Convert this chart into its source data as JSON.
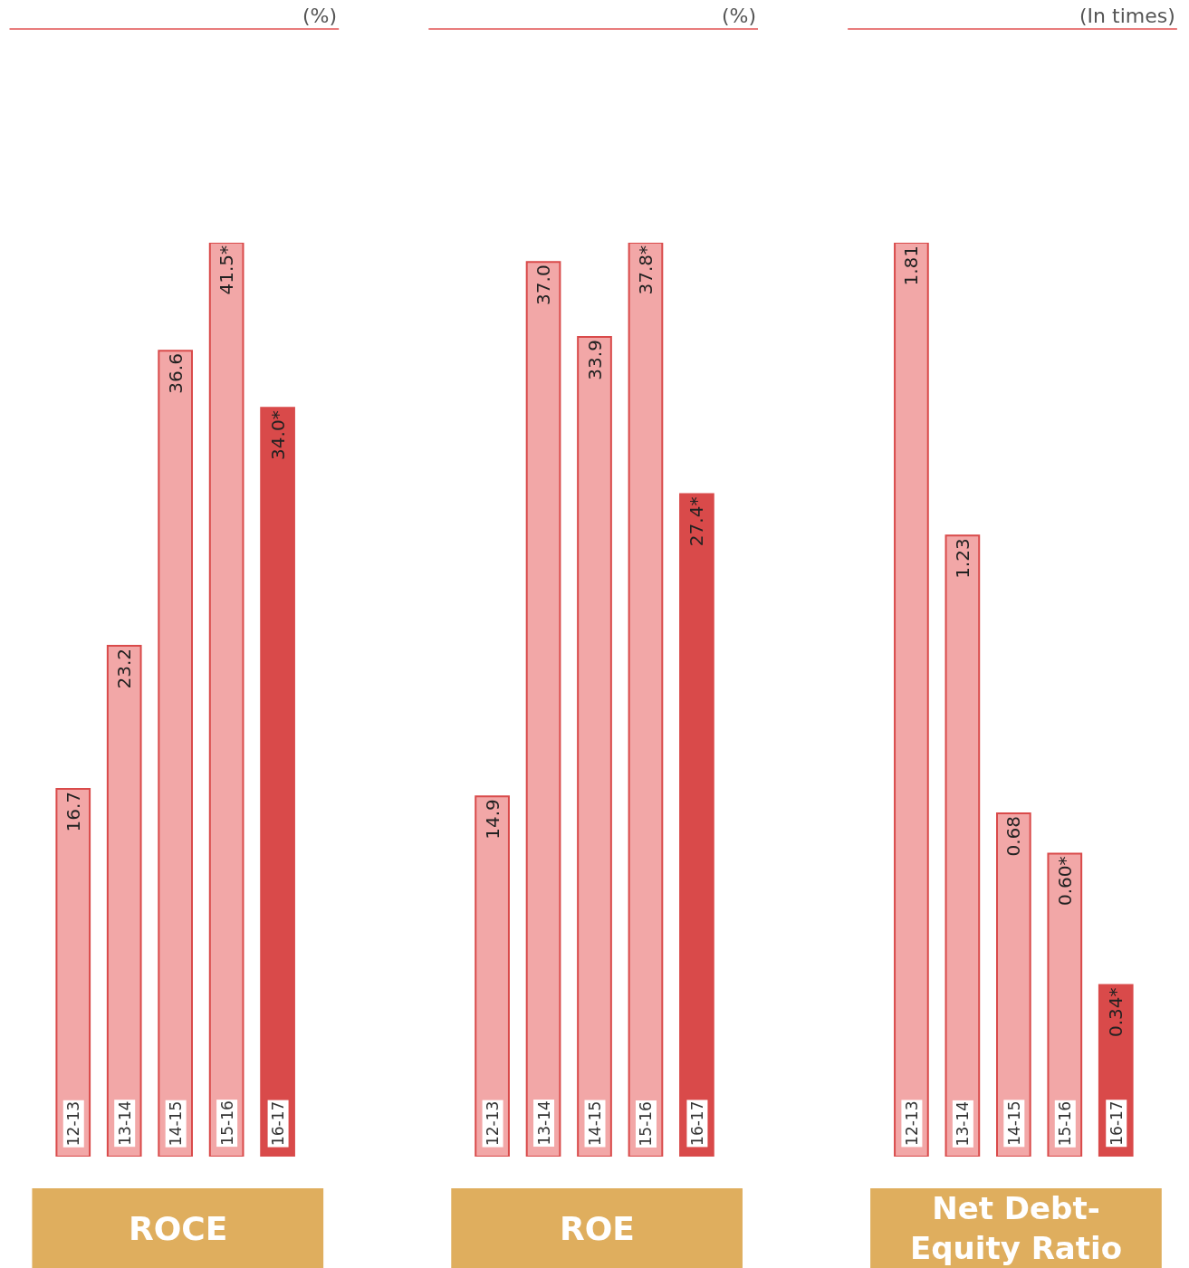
{
  "chart_data": [
    {
      "type": "bar",
      "title": "ROCE",
      "subtitle": "(%)",
      "categories": [
        "12-13",
        "13-14",
        "14-15",
        "15-16",
        "16-17"
      ],
      "values": [
        16.7,
        23.2,
        36.6,
        41.5,
        34.0
      ],
      "value_labels": [
        "16.7",
        "23.2",
        "36.6",
        "41.5*",
        "34.0*"
      ],
      "colors": [
        "#f2a7a7",
        "#f2a7a7",
        "#f2a7a7",
        "#f2a7a7",
        "#d94a4a"
      ],
      "ylim": [
        0,
        41.5
      ]
    },
    {
      "type": "bar",
      "title": "ROE",
      "subtitle": "(%)",
      "categories": [
        "12-13",
        "13-14",
        "14-15",
        "15-16",
        "16-17"
      ],
      "values": [
        14.9,
        37.0,
        33.9,
        37.8,
        27.4
      ],
      "value_labels": [
        "14.9",
        "37.0",
        "33.9",
        "37.8*",
        "27.4*"
      ],
      "colors": [
        "#f2a7a7",
        "#f2a7a7",
        "#f2a7a7",
        "#f2a7a7",
        "#d94a4a"
      ],
      "ylim": [
        0,
        37.8
      ]
    },
    {
      "type": "bar",
      "title": "Net Debt-Equity Ratio",
      "subtitle": "(In times)",
      "categories": [
        "12-13",
        "13-14",
        "14-15",
        "15-16",
        "16-17"
      ],
      "values": [
        1.81,
        1.23,
        0.68,
        0.6,
        0.34
      ],
      "value_labels": [
        "1.81",
        "1.23",
        "0.68",
        "0.60*",
        "0.34*"
      ],
      "colors": [
        "#f2a7a7",
        "#f2a7a7",
        "#f2a7a7",
        "#f2a7a7",
        "#d94a4a"
      ],
      "ylim": [
        0,
        1.81
      ]
    }
  ]
}
